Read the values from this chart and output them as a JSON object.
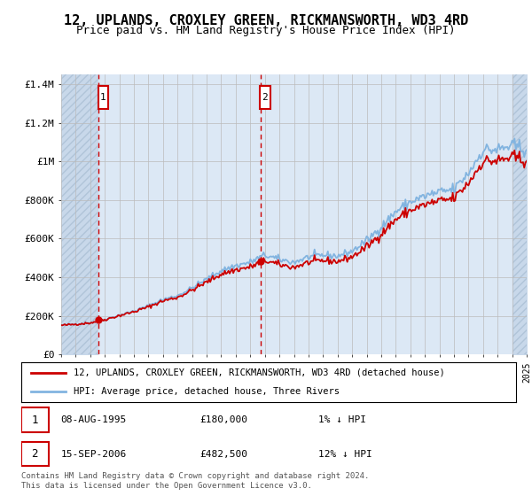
{
  "title": "12, UPLANDS, CROXLEY GREEN, RICKMANSWORTH, WD3 4RD",
  "subtitle": "Price paid vs. HM Land Registry's House Price Index (HPI)",
  "ylabel_ticks": [
    "£0",
    "£200K",
    "£400K",
    "£600K",
    "£800K",
    "£1M",
    "£1.2M",
    "£1.4M"
  ],
  "ytick_values": [
    0,
    200000,
    400000,
    600000,
    800000,
    1000000,
    1200000,
    1400000
  ],
  "ylim": [
    0,
    1450000
  ],
  "xlim": [
    1993,
    2025
  ],
  "sale1_date": "08-AUG-1995",
  "sale1_price": 180000,
  "sale1_t": 1995.583,
  "sale1_label": "1",
  "sale1_pct": "1%",
  "sale2_date": "15-SEP-2006",
  "sale2_price": 482500,
  "sale2_t": 2006.708,
  "sale2_label": "2",
  "sale2_pct": "12%",
  "legend_line1": "12, UPLANDS, CROXLEY GREEN, RICKMANSWORTH, WD3 4RD (detached house)",
  "legend_line2": "HPI: Average price, detached house, Three Rivers",
  "footnote": "Contains HM Land Registry data © Crown copyright and database right 2024.\nThis data is licensed under the Open Government Licence v3.0.",
  "price_color": "#cc0000",
  "hpi_color": "#82b4e0",
  "background_color": "#dce8f5",
  "hatch_color": "#c8d8ea",
  "grid_color": "#bbbbbb",
  "annotation_box_color": "#cc0000",
  "title_fontsize": 11,
  "subtitle_fontsize": 9
}
